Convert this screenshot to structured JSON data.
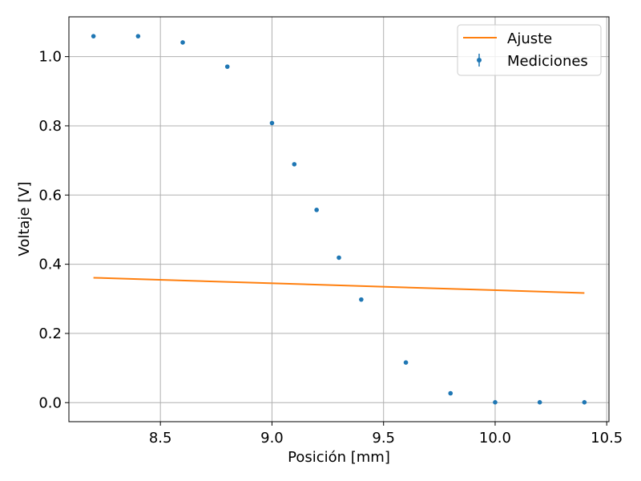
{
  "chart_data": {
    "type": "scatter",
    "xlabel": "Posición [mm]",
    "ylabel": "Voltaje [V]",
    "xlim": [
      8.09,
      10.51
    ],
    "ylim": [
      -0.055,
      1.115
    ],
    "xticks": [
      8.5,
      9.0,
      9.5,
      10.0,
      10.5
    ],
    "xtick_labels": [
      "8.5",
      "9.0",
      "9.5",
      "10.0",
      "10.5"
    ],
    "yticks": [
      0.0,
      0.2,
      0.4,
      0.6,
      0.8,
      1.0
    ],
    "ytick_labels": [
      "0.0",
      "0.2",
      "0.4",
      "0.6",
      "0.8",
      "1.0"
    ],
    "grid": true,
    "legend_placement": "upper-right",
    "series": [
      {
        "name": "Ajuste",
        "kind": "line",
        "color": "#ff7f0e",
        "x": [
          8.2,
          10.4
        ],
        "y": [
          0.361,
          0.317
        ]
      },
      {
        "name": "Mediciones",
        "kind": "scatter",
        "color": "#1f77b4",
        "x": [
          8.2,
          8.4,
          8.6,
          8.8,
          9.0,
          9.1,
          9.2,
          9.3,
          9.4,
          9.6,
          9.8,
          10.0,
          10.2,
          10.4
        ],
        "y": [
          1.059,
          1.059,
          1.041,
          0.971,
          0.808,
          0.689,
          0.557,
          0.419,
          0.298,
          0.116,
          0.027,
          0.001,
          0.001,
          0.001
        ]
      }
    ]
  }
}
